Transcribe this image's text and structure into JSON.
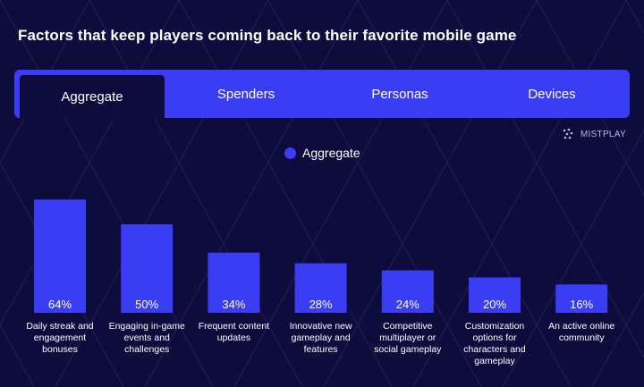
{
  "title": "Factors that keep players coming back to their favorite mobile game",
  "tabs": [
    {
      "label": "Aggregate",
      "active": true
    },
    {
      "label": "Spenders",
      "active": false
    },
    {
      "label": "Personas",
      "active": false
    },
    {
      "label": "Devices",
      "active": false
    }
  ],
  "brand": {
    "name": "MISTPLAY",
    "icon": "mistplay-logo-icon"
  },
  "colors": {
    "background": "#0e0b3d",
    "accent": "#3b3df5",
    "text": "#ffffff"
  },
  "chart_data": {
    "type": "bar",
    "categories": [
      [
        "Daily streak and",
        "engagement",
        "bonuses"
      ],
      [
        "Engaging in-game",
        "events and",
        "challenges"
      ],
      [
        "Frequent content",
        "updates"
      ],
      [
        "Innovative new",
        "gameplay and",
        "features"
      ],
      [
        "Competitive",
        "multiplayer or",
        "social gameplay"
      ],
      [
        "Customization",
        "options for",
        "characters and",
        "gameplay"
      ],
      [
        "An active online",
        "community"
      ]
    ],
    "series": [
      {
        "name": "Aggregate",
        "values": [
          64,
          50,
          34,
          28,
          24,
          20,
          16
        ]
      }
    ],
    "value_labels": [
      "64%",
      "50%",
      "34%",
      "28%",
      "24%",
      "20%",
      "16%"
    ],
    "ylim": [
      0,
      100
    ],
    "legend": "top-center",
    "grid": false
  }
}
